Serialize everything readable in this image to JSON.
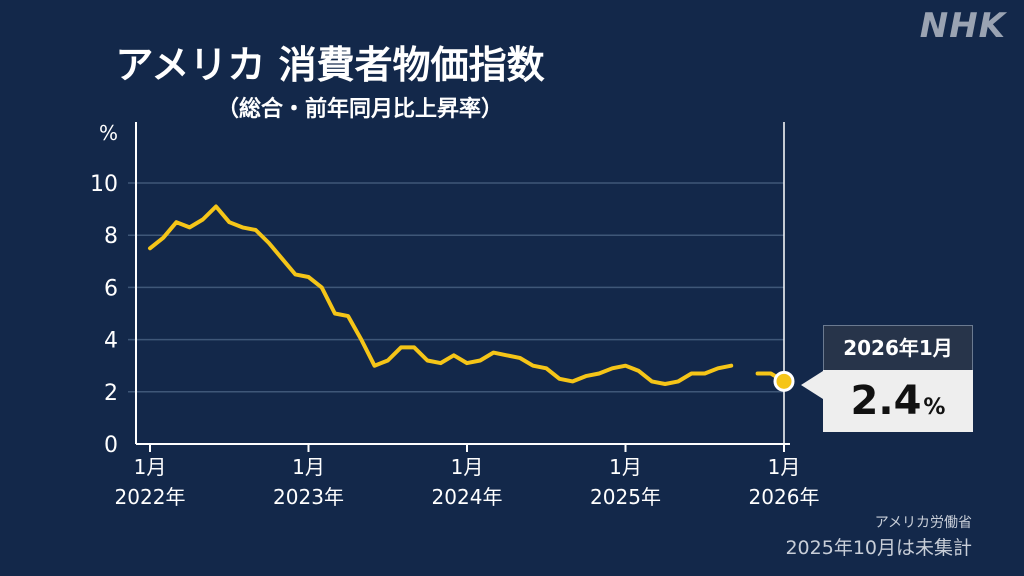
{
  "brand": {
    "logo": "NHK"
  },
  "header": {
    "title": "アメリカ 消費者物価指数",
    "subtitle": "（総合・前年同月比上昇率）"
  },
  "callout": {
    "date": "2026年1月",
    "value": "2.4",
    "unit": "%"
  },
  "footer": {
    "source": "アメリカ労働省",
    "note": "2025年10月は未集計"
  },
  "colors": {
    "background": "#13284a",
    "line": "#f5c518",
    "grid": "#3f5778"
  },
  "chart_data": {
    "type": "line",
    "title": "アメリカ 消費者物価指数",
    "subtitle": "（総合・前年同月比上昇率）",
    "ylabel": "%",
    "ylim": [
      0,
      10
    ],
    "yticks": [
      0,
      2,
      4,
      6,
      8,
      10
    ],
    "grid": true,
    "xtick_labels": [
      {
        "month": "1月",
        "year": "2022年",
        "index": 0
      },
      {
        "month": "1月",
        "year": "2023年",
        "index": 12
      },
      {
        "month": "1月",
        "year": "2024年",
        "index": 24
      },
      {
        "month": "1月",
        "year": "2025年",
        "index": 36
      },
      {
        "month": "1月",
        "year": "2026年",
        "index": 48
      }
    ],
    "x": [
      "2022-01",
      "2022-02",
      "2022-03",
      "2022-04",
      "2022-05",
      "2022-06",
      "2022-07",
      "2022-08",
      "2022-09",
      "2022-10",
      "2022-11",
      "2022-12",
      "2023-01",
      "2023-02",
      "2023-03",
      "2023-04",
      "2023-05",
      "2023-06",
      "2023-07",
      "2023-08",
      "2023-09",
      "2023-10",
      "2023-11",
      "2023-12",
      "2024-01",
      "2024-02",
      "2024-03",
      "2024-04",
      "2024-05",
      "2024-06",
      "2024-07",
      "2024-08",
      "2024-09",
      "2024-10",
      "2024-11",
      "2024-12",
      "2025-01",
      "2025-02",
      "2025-03",
      "2025-04",
      "2025-05",
      "2025-06",
      "2025-07",
      "2025-08",
      "2025-09",
      "2025-10",
      "2025-11",
      "2025-12",
      "2026-01"
    ],
    "series": [
      {
        "values": [
          7.5,
          7.9,
          8.5,
          8.3,
          8.6,
          9.1,
          8.5,
          8.3,
          8.2,
          7.7,
          7.1,
          6.5,
          6.4,
          6.0,
          5.0,
          4.9,
          4.0,
          3.0,
          3.2,
          3.7,
          3.7,
          3.2,
          3.1,
          3.4,
          3.1,
          3.2,
          3.5,
          3.4,
          3.3,
          3.0,
          2.9,
          2.5,
          2.4,
          2.6,
          2.7,
          2.9,
          3.0,
          2.8,
          2.4,
          2.3,
          2.4,
          2.7,
          2.7,
          2.9,
          3.0,
          null,
          2.7,
          2.7,
          2.4
        ]
      }
    ],
    "latest": {
      "x": "2026-01",
      "value": 2.4
    }
  }
}
